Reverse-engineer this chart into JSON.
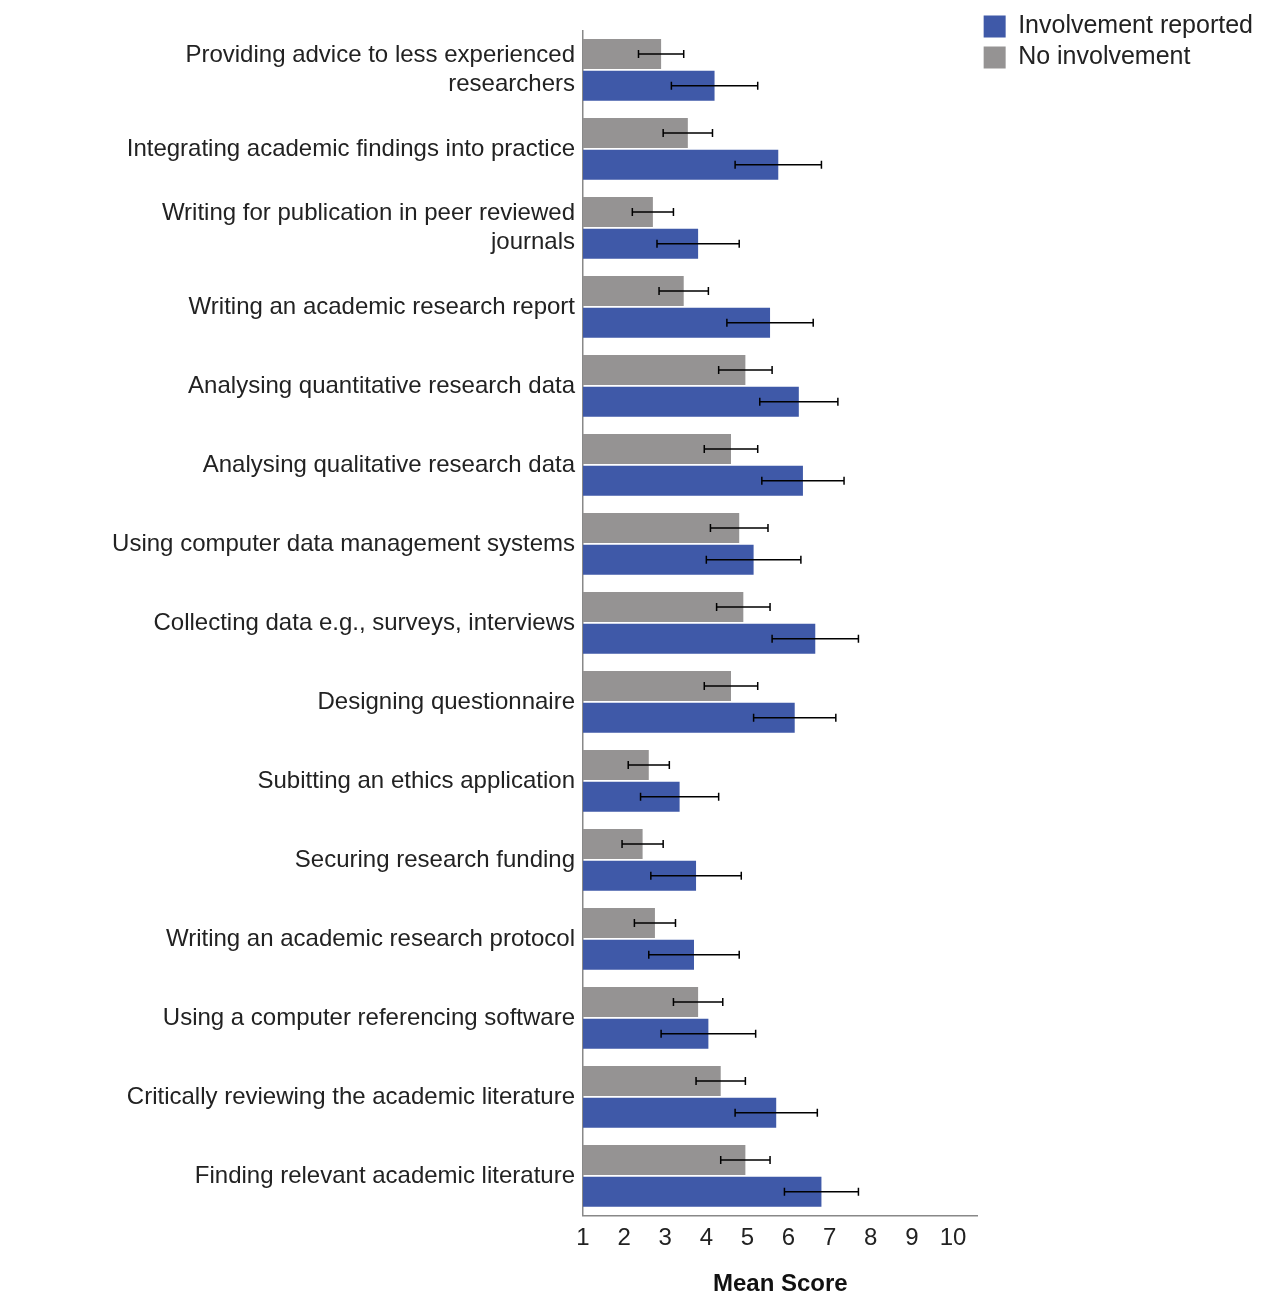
{
  "chart_data": {
    "type": "bar",
    "orientation": "horizontal",
    "xlabel": "Mean Score",
    "categories": [
      "Providing advice to less experienced researchers",
      "Integrating academic findings into practice",
      "Writing for publication in peer reviewed journals",
      "Writing an academic research report",
      "Analysing quantitative research data",
      "Analysing qualitative research data",
      "Using computer data management systems",
      "Collecting data e.g., surveys, interviews",
      "Designing questionnaire",
      "Subitting an ethics application",
      "Securing research funding",
      "Writing an academic research protocol",
      "Using a computer referencing software",
      "Critically reviewing the academic literature",
      "Finding relevant academic literature"
    ],
    "series": [
      {
        "name": "No involvement",
        "color": "#959393",
        "values": [
          2.9,
          3.55,
          2.7,
          3.45,
          4.95,
          4.6,
          4.8,
          4.9,
          4.6,
          2.6,
          2.45,
          2.75,
          3.8,
          4.35,
          4.95
        ],
        "errors": [
          0.55,
          0.6,
          0.5,
          0.6,
          0.65,
          0.65,
          0.7,
          0.65,
          0.65,
          0.5,
          0.5,
          0.5,
          0.6,
          0.6,
          0.6
        ]
      },
      {
        "name": "Involvement reported",
        "color": "#3f59a8",
        "values": [
          4.2,
          5.75,
          3.8,
          5.55,
          6.25,
          6.35,
          5.15,
          6.65,
          6.15,
          3.35,
          3.75,
          3.7,
          4.05,
          5.7,
          6.8
        ],
        "errors": [
          1.05,
          1.05,
          1.0,
          1.05,
          0.95,
          1.0,
          1.15,
          1.05,
          1.0,
          0.95,
          1.1,
          1.1,
          1.15,
          1.0,
          0.9
        ]
      }
    ],
    "xlim": [
      1,
      10.6
    ],
    "xticks": [
      1,
      2,
      3,
      4,
      5,
      6,
      7,
      8,
      9,
      10
    ],
    "grid": false,
    "legend": "top right"
  }
}
